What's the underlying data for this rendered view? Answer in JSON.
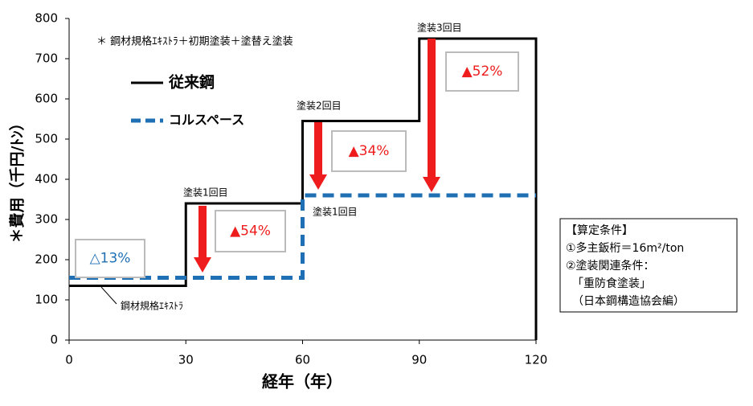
{
  "chart_data": {
    "type": "line",
    "x_label": "経年（年）",
    "y_label": "＊費用（千円/ﾄﾝ）",
    "note": "＊ 鋼材規格ｴｷｽﾄﾗ＋初期塗装＋塗替え塗装",
    "series": [
      {
        "name": "従来鋼",
        "color": "#000000",
        "style": "solid",
        "x": [
          0,
          30,
          30,
          60,
          60,
          90,
          90,
          120,
          120
        ],
        "values": [
          135,
          135,
          340,
          340,
          545,
          545,
          750,
          750,
          0
        ]
      },
      {
        "name": "コルスペース",
        "color": "#1f6fb5",
        "style": "dashed",
        "x": [
          0,
          60,
          60,
          120
        ],
        "values": [
          155,
          155,
          360,
          360
        ]
      }
    ],
    "annotations": [
      "塗装1回目",
      "塗装2回目",
      "塗装3回目",
      "塗装1回目",
      "鋼材規格ｴｷｽﾄﾗ"
    ],
    "reduction_labels": [
      "▲54%",
      "▲34%",
      "▲52%",
      "△13%"
    ],
    "conditions": [
      "【算定条件】",
      "①多主鈑桁＝16m²/ton",
      "②塗装関連条件：",
      "「重防食塗装」",
      "（日本鋼構造協会編）"
    ],
    "xlim": [
      0,
      120
    ],
    "xticks": [
      0,
      30,
      60,
      90,
      120
    ],
    "ylim": [
      0,
      800
    ],
    "yticks": [
      0,
      100,
      200,
      300,
      400,
      500,
      600,
      700,
      800
    ],
    "grid": false
  }
}
